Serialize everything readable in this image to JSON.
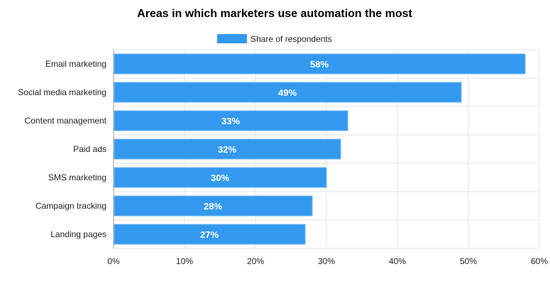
{
  "chart_data": {
    "type": "bar",
    "orientation": "horizontal",
    "title": "Areas in which marketers use automation the most",
    "xlabel": "",
    "ylabel": "",
    "categories": [
      "Email marketing",
      "Social media marketing",
      "Content management",
      "Paid ads",
      "SMS marketing",
      "Campaign tracking",
      "Landing pages"
    ],
    "series": [
      {
        "name": "Share of respondents",
        "values": [
          58,
          49,
          33,
          32,
          30,
          28,
          27
        ],
        "color": "#3399ee"
      }
    ],
    "data_labels": [
      "58%",
      "49%",
      "33%",
      "32%",
      "30%",
      "28%",
      "27%"
    ],
    "xlim": [
      0,
      60
    ],
    "x_ticks": [
      0,
      10,
      20,
      30,
      40,
      50,
      60
    ],
    "x_tick_labels": [
      "0%",
      "10%",
      "20%",
      "30%",
      "40%",
      "50%",
      "60%"
    ],
    "grid": true,
    "legend_position": "top-center"
  }
}
